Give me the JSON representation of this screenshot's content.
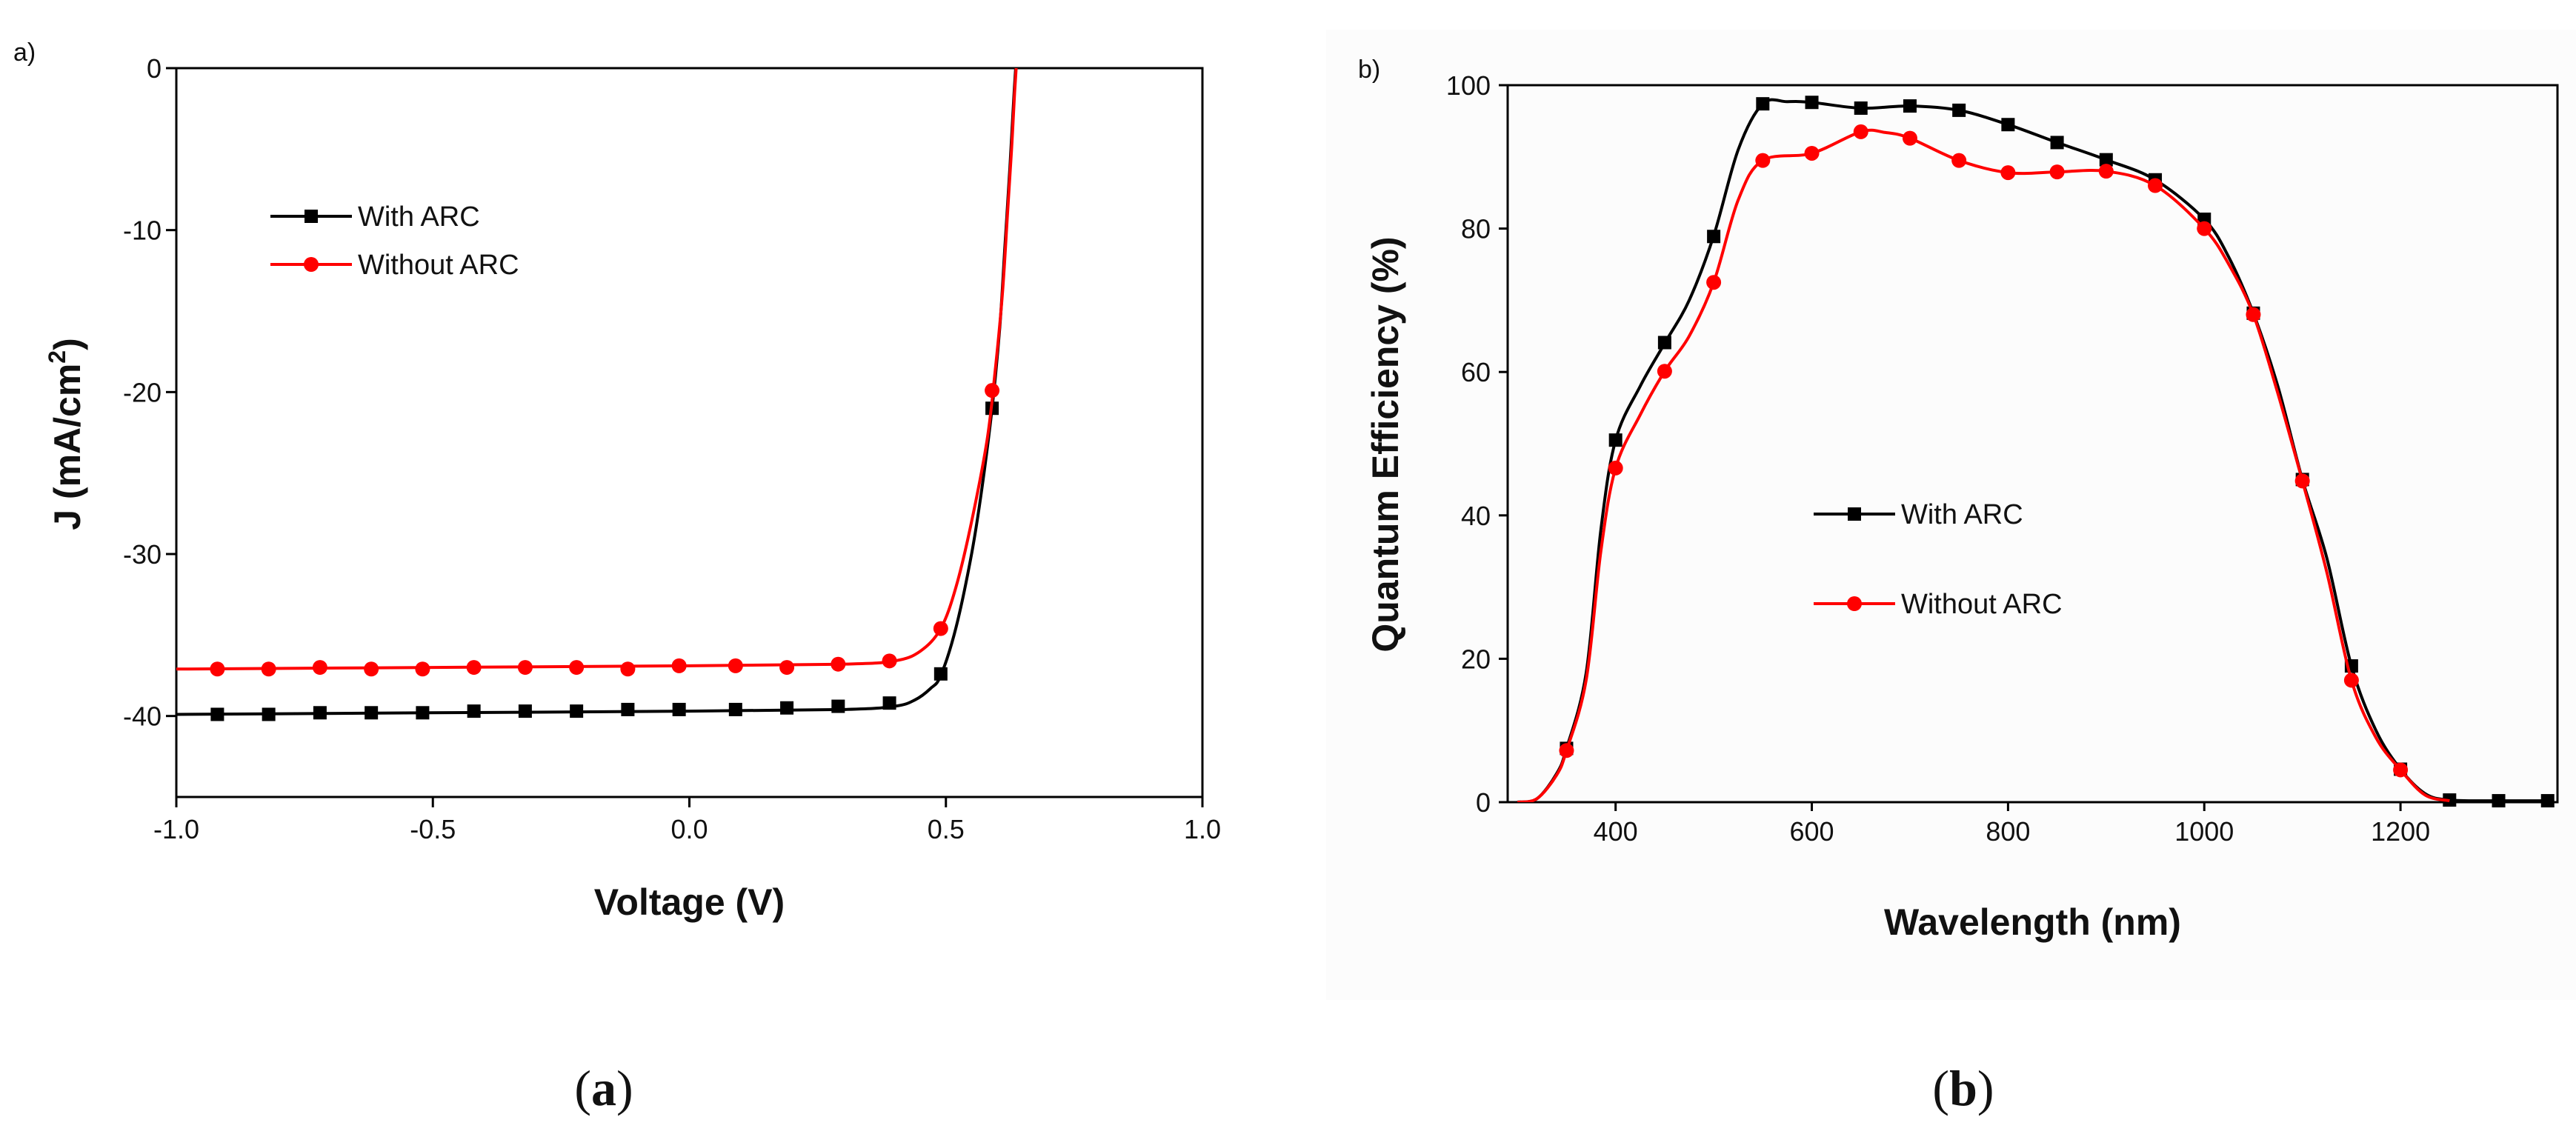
{
  "chart_data": [
    {
      "type": "line",
      "panel_label": "a)",
      "caption": {
        "open": "(",
        "letter": "a",
        "close": ")"
      },
      "xlabel": "Voltage (V)",
      "ylabel_main": "J (mA/cm",
      "ylabel_sup": "2",
      "ylabel_close": ")",
      "xlim": [
        -1.0,
        1.0
      ],
      "ylim": [
        -45,
        0
      ],
      "xticks": [
        -1.0,
        -0.5,
        0.0,
        0.5,
        1.0
      ],
      "xtick_labels": [
        "-1.0",
        "-0.5",
        "0.0",
        "0.5",
        "1.0"
      ],
      "yticks": [
        0,
        -10,
        -20,
        -30,
        -40
      ],
      "ytick_labels": [
        "0",
        "-10",
        "-20",
        "-30",
        "-40"
      ],
      "legend_position": "upper-left",
      "series": [
        {
          "name": "With ARC",
          "color": "#000000",
          "marker": "square",
          "curve": [
            [
              -1.0,
              -39.9
            ],
            [
              -0.5,
              -39.8
            ],
            [
              0.0,
              -39.7
            ],
            [
              0.3,
              -39.6
            ],
            [
              0.4,
              -39.4
            ],
            [
              0.44,
              -39.0
            ],
            [
              0.47,
              -38.3
            ],
            [
              0.49,
              -37.5
            ],
            [
              0.52,
              -34.5
            ],
            [
              0.55,
              -30.0
            ],
            [
              0.57,
              -26.0
            ],
            [
              0.59,
              -21.0
            ],
            [
              0.605,
              -16.0
            ],
            [
              0.615,
              -11.0
            ],
            [
              0.625,
              -6.0
            ],
            [
              0.632,
              -2.0
            ],
            [
              0.636,
              0.0
            ]
          ],
          "markers": [
            [
              -0.92,
              -39.9
            ],
            [
              -0.82,
              -39.9
            ],
            [
              -0.72,
              -39.8
            ],
            [
              -0.62,
              -39.8
            ],
            [
              -0.52,
              -39.8
            ],
            [
              -0.42,
              -39.7
            ],
            [
              -0.32,
              -39.7
            ],
            [
              -0.22,
              -39.7
            ],
            [
              -0.12,
              -39.6
            ],
            [
              -0.02,
              -39.6
            ],
            [
              0.09,
              -39.6
            ],
            [
              0.19,
              -39.5
            ],
            [
              0.29,
              -39.4
            ],
            [
              0.39,
              -39.2
            ],
            [
              0.49,
              -37.4
            ],
            [
              0.59,
              -21.0
            ]
          ]
        },
        {
          "name": "Without ARC",
          "color": "#ff0000",
          "marker": "circle",
          "curve": [
            [
              -1.0,
              -37.1
            ],
            [
              -0.5,
              -37.0
            ],
            [
              0.0,
              -36.9
            ],
            [
              0.3,
              -36.8
            ],
            [
              0.4,
              -36.6
            ],
            [
              0.45,
              -36.0
            ],
            [
              0.49,
              -34.6
            ],
            [
              0.52,
              -32.0
            ],
            [
              0.55,
              -28.0
            ],
            [
              0.58,
              -23.0
            ],
            [
              0.595,
              -19.0
            ],
            [
              0.61,
              -14.0
            ],
            [
              0.62,
              -9.0
            ],
            [
              0.628,
              -5.0
            ],
            [
              0.634,
              -1.5
            ],
            [
              0.637,
              0.0
            ]
          ],
          "markers": [
            [
              -0.92,
              -37.1
            ],
            [
              -0.82,
              -37.1
            ],
            [
              -0.72,
              -37.0
            ],
            [
              -0.62,
              -37.1
            ],
            [
              -0.52,
              -37.1
            ],
            [
              -0.42,
              -37.0
            ],
            [
              -0.32,
              -37.0
            ],
            [
              -0.22,
              -37.0
            ],
            [
              -0.12,
              -37.1
            ],
            [
              -0.02,
              -36.9
            ],
            [
              0.09,
              -36.9
            ],
            [
              0.19,
              -37.0
            ],
            [
              0.29,
              -36.8
            ],
            [
              0.39,
              -36.6
            ],
            [
              0.49,
              -34.6
            ],
            [
              0.59,
              -19.9
            ]
          ]
        }
      ]
    },
    {
      "type": "line",
      "panel_label": "b)",
      "caption": {
        "open": "(",
        "letter": "b",
        "close": ")"
      },
      "xlabel": "Wavelength (nm)",
      "ylabel": "Quantum Efficiency (%)",
      "xlim": [
        290,
        1360
      ],
      "ylim": [
        0,
        100
      ],
      "xticks": [
        400,
        600,
        800,
        1000,
        1200
      ],
      "xtick_labels": [
        "400",
        "600",
        "800",
        "1000",
        "1200"
      ],
      "yticks": [
        0,
        20,
        40,
        60,
        80,
        100
      ],
      "ytick_labels": [
        "0",
        "20",
        "40",
        "60",
        "80",
        "100"
      ],
      "legend_position": "center-left",
      "series": [
        {
          "name": "With ARC",
          "color": "#000000",
          "marker": "square",
          "curve": [
            [
              300,
              0
            ],
            [
              320,
              0.5
            ],
            [
              340,
              4
            ],
            [
              350,
              7.5
            ],
            [
              370,
              18
            ],
            [
              385,
              38
            ],
            [
              400,
              50.5
            ],
            [
              425,
              58
            ],
            [
              450,
              64
            ],
            [
              475,
              70
            ],
            [
              500,
              79
            ],
            [
              525,
              91
            ],
            [
              550,
              97.4
            ],
            [
              575,
              97.7
            ],
            [
              600,
              97.6
            ],
            [
              650,
              96.8
            ],
            [
              700,
              97.1
            ],
            [
              750,
              96.5
            ],
            [
              800,
              94.5
            ],
            [
              850,
              92.0
            ],
            [
              900,
              89.6
            ],
            [
              950,
              86.8
            ],
            [
              1000,
              81.3
            ],
            [
              1025,
              76
            ],
            [
              1050,
              68.2
            ],
            [
              1075,
              58
            ],
            [
              1100,
              45.0
            ],
            [
              1125,
              34
            ],
            [
              1150,
              19.0
            ],
            [
              1175,
              10
            ],
            [
              1200,
              4.6
            ],
            [
              1225,
              1.2
            ],
            [
              1250,
              0.3
            ],
            [
              1300,
              0.2
            ],
            [
              1350,
              0.2
            ]
          ],
          "markers": [
            [
              350,
              7.5
            ],
            [
              400,
              50.5
            ],
            [
              450,
              64.1
            ],
            [
              500,
              78.9
            ],
            [
              550,
              97.4
            ],
            [
              600,
              97.6
            ],
            [
              650,
              96.8
            ],
            [
              700,
              97.1
            ],
            [
              750,
              96.5
            ],
            [
              800,
              94.5
            ],
            [
              850,
              92.0
            ],
            [
              900,
              89.6
            ],
            [
              950,
              86.8
            ],
            [
              1000,
              81.3
            ],
            [
              1050,
              68.2
            ],
            [
              1100,
              45.0
            ],
            [
              1150,
              19.0
            ],
            [
              1200,
              4.6
            ],
            [
              1250,
              0.3
            ],
            [
              1300,
              0.2
            ],
            [
              1350,
              0.2
            ]
          ]
        },
        {
          "name": "Without ARC",
          "color": "#ff0000",
          "marker": "circle",
          "curve": [
            [
              300,
              0
            ],
            [
              320,
              0.5
            ],
            [
              340,
              3.8
            ],
            [
              350,
              7.2
            ],
            [
              370,
              17
            ],
            [
              385,
              35
            ],
            [
              400,
              46.6
            ],
            [
              425,
              54
            ],
            [
              450,
              60.1
            ],
            [
              475,
              65
            ],
            [
              500,
              72.5
            ],
            [
              525,
              84
            ],
            [
              550,
              89.5
            ],
            [
              600,
              90.5
            ],
            [
              650,
              93.5
            ],
            [
              675,
              93.4
            ],
            [
              700,
              92.6
            ],
            [
              750,
              89.5
            ],
            [
              800,
              87.8
            ],
            [
              850,
              87.9
            ],
            [
              900,
              88.0
            ],
            [
              950,
              86.0
            ],
            [
              1000,
              80.0
            ],
            [
              1025,
              75
            ],
            [
              1050,
              68.0
            ],
            [
              1075,
              57
            ],
            [
              1100,
              44.8
            ],
            [
              1125,
              32
            ],
            [
              1150,
              17.0
            ],
            [
              1175,
              9
            ],
            [
              1200,
              4.5
            ],
            [
              1225,
              1.0
            ],
            [
              1250,
              0.2
            ]
          ],
          "markers": [
            [
              350,
              7.2
            ],
            [
              400,
              46.6
            ],
            [
              450,
              60.1
            ],
            [
              500,
              72.5
            ],
            [
              550,
              89.5
            ],
            [
              600,
              90.5
            ],
            [
              650,
              93.5
            ],
            [
              700,
              92.6
            ],
            [
              750,
              89.5
            ],
            [
              800,
              87.8
            ],
            [
              850,
              87.9
            ],
            [
              900,
              88.0
            ],
            [
              950,
              86.0
            ],
            [
              1000,
              80.0
            ],
            [
              1050,
              68.0
            ],
            [
              1100,
              44.8
            ],
            [
              1150,
              17.0
            ],
            [
              1200,
              4.5
            ]
          ]
        }
      ]
    }
  ]
}
